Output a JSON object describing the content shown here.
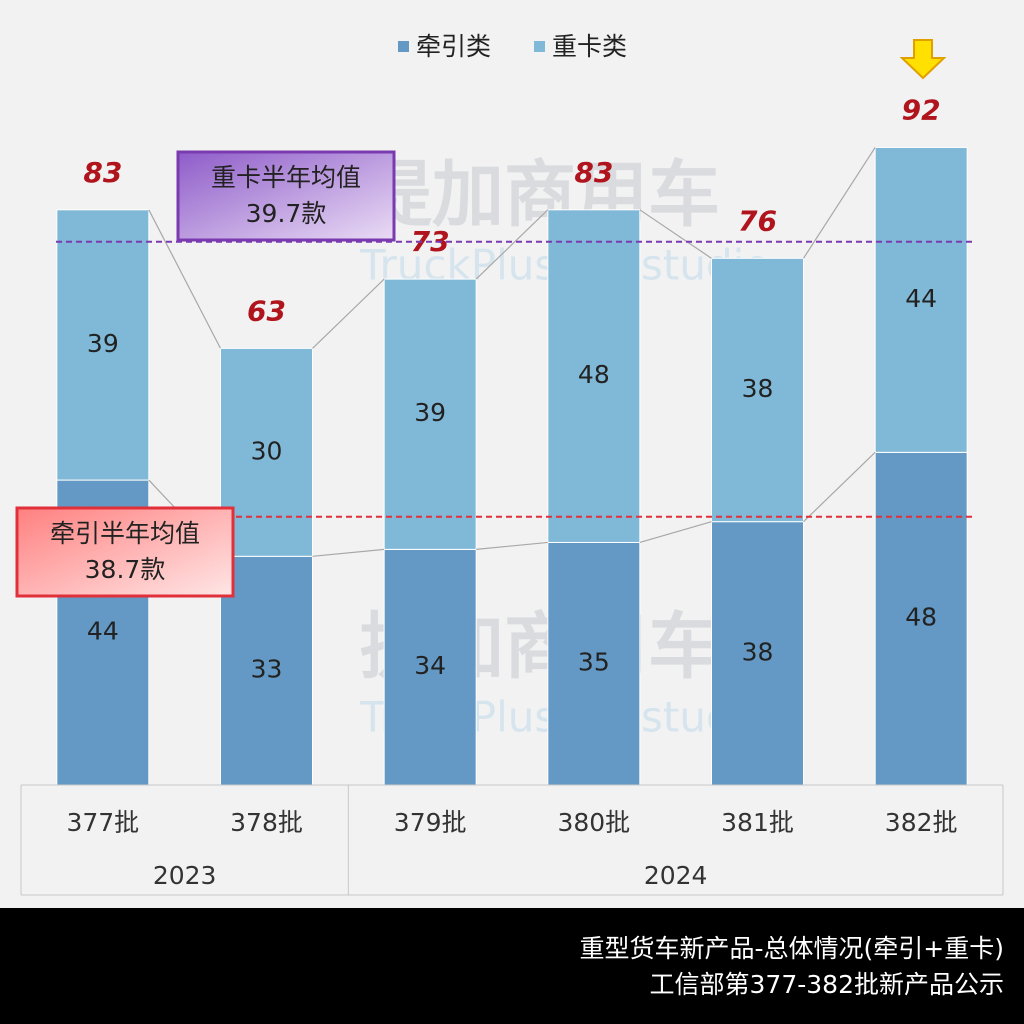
{
  "chart_data": {
    "type": "stacked_bar",
    "groups": [
      {
        "label": "2023",
        "categories": [
          "377批",
          "378批"
        ]
      },
      {
        "label": "2024",
        "categories": [
          "379批",
          "380批",
          "381批",
          "382批"
        ]
      }
    ],
    "series": [
      {
        "name": "牵引类",
        "color": "#6399c4",
        "values": [
          44,
          33,
          34,
          35,
          38,
          48
        ]
      },
      {
        "name": "重卡类",
        "color": "#80b9d7",
        "values": [
          39,
          30,
          39,
          48,
          38,
          44
        ]
      }
    ],
    "totals": [
      83,
      63,
      73,
      83,
      76,
      92
    ],
    "ylim": [
      0,
      100
    ],
    "averages": [
      {
        "series": 0,
        "title": "牵引半年均值",
        "value": 38.7,
        "value_label": "38.7款",
        "color": "#e0303a"
      },
      {
        "series": 1,
        "title": "重卡半年均值",
        "value": 39.7,
        "value_label": "39.7款",
        "color": "#7a3ab0"
      }
    ],
    "watermark": [
      "提加商用车",
      "TruckPlus CV studio"
    ],
    "footer": [
      "重型货车新产品-总体情况(牵引+重卡)",
      "工信部第377-382批新产品公示"
    ]
  }
}
